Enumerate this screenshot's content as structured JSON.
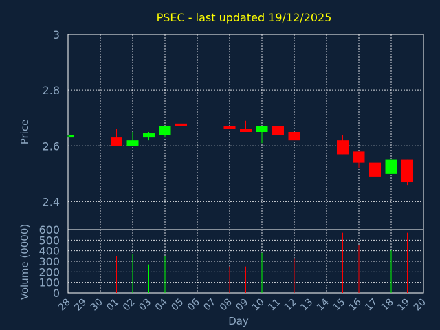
{
  "chart_data": {
    "type": "candlestick",
    "title": "PSEC - last updated 19/12/2025",
    "xlabel": "Day",
    "ylabel_price": "Price",
    "ylabel_volume": "Volume (0000)",
    "x_ticks": [
      "28",
      "29",
      "30",
      "01",
      "02",
      "03",
      "04",
      "05",
      "06",
      "07",
      "08",
      "09",
      "10",
      "11",
      "12",
      "13",
      "14",
      "15",
      "16",
      "17",
      "18",
      "19",
      "20"
    ],
    "price_ylim": [
      2.3,
      3.0
    ],
    "price_ticks": [
      "2.4",
      "2.6",
      "2.8",
      "3"
    ],
    "price_tick_values": [
      2.4,
      2.6,
      2.8,
      3.0
    ],
    "volume_ylim": [
      0,
      600
    ],
    "volume_ticks": [
      "0",
      "100",
      "200",
      "300",
      "400",
      "500",
      "600"
    ],
    "volume_tick_values": [
      0,
      100,
      200,
      300,
      400,
      500,
      600
    ],
    "grid": true,
    "up_color": "#00ff00",
    "down_color": "#ff0000",
    "candles": [
      {
        "day": "28",
        "open": 2.63,
        "close": 2.64,
        "high": 2.64,
        "low": 2.63,
        "volume": 0
      },
      {
        "day": "01",
        "open": 2.63,
        "close": 2.6,
        "high": 2.66,
        "low": 2.6,
        "volume": 350
      },
      {
        "day": "02",
        "open": 2.6,
        "close": 2.62,
        "high": 2.65,
        "low": 2.6,
        "volume": 370
      },
      {
        "day": "03",
        "open": 2.63,
        "close": 2.645,
        "high": 2.65,
        "low": 2.62,
        "volume": 270
      },
      {
        "day": "04",
        "open": 2.64,
        "close": 2.67,
        "high": 2.67,
        "low": 2.63,
        "volume": 350
      },
      {
        "day": "05",
        "open": 2.68,
        "close": 2.67,
        "high": 2.71,
        "low": 2.67,
        "volume": 330
      },
      {
        "day": "08",
        "open": 2.67,
        "close": 2.66,
        "high": 2.67,
        "low": 2.66,
        "volume": 250
      },
      {
        "day": "09",
        "open": 2.66,
        "close": 2.65,
        "high": 2.69,
        "low": 2.65,
        "volume": 250
      },
      {
        "day": "10",
        "open": 2.65,
        "close": 2.67,
        "high": 2.67,
        "low": 2.61,
        "volume": 380
      },
      {
        "day": "11",
        "open": 2.67,
        "close": 2.64,
        "high": 2.69,
        "low": 2.64,
        "volume": 330
      },
      {
        "day": "12",
        "open": 2.65,
        "close": 2.62,
        "high": 2.65,
        "low": 2.62,
        "volume": 330
      },
      {
        "day": "15",
        "open": 2.62,
        "close": 2.57,
        "high": 2.64,
        "low": 2.57,
        "volume": 570
      },
      {
        "day": "16",
        "open": 2.58,
        "close": 2.54,
        "high": 2.58,
        "low": 2.52,
        "volume": 450
      },
      {
        "day": "17",
        "open": 2.54,
        "close": 2.49,
        "high": 2.57,
        "low": 2.49,
        "volume": 550
      },
      {
        "day": "18",
        "open": 2.5,
        "close": 2.55,
        "high": 2.55,
        "low": 2.5,
        "volume": 410
      },
      {
        "day": "19",
        "open": 2.55,
        "close": 2.47,
        "high": 2.55,
        "low": 2.46,
        "volume": 570
      }
    ]
  }
}
